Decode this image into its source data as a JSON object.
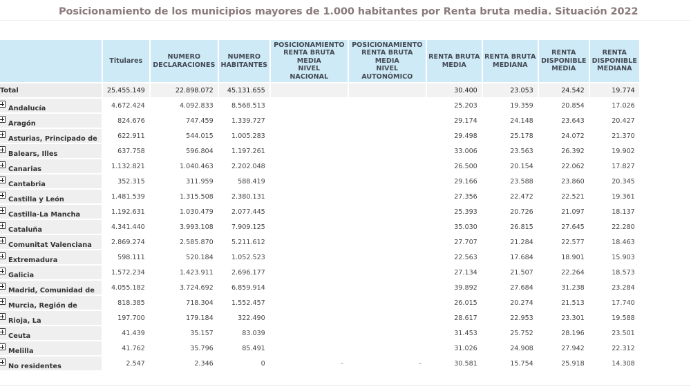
{
  "title": "Posicionamiento de los municipios mayores de 1.000 habitantes por Renta bruta media. Situación 2022",
  "colors": {
    "header_bg": "#cdeaf6",
    "label_bg": "#efefef",
    "title": "#8a7a7c"
  },
  "table": {
    "headers": [
      "",
      "Titulares",
      "NUMERO DECLARACIONES",
      "NUMERO HABITANTES",
      "POSICIONAMIENTO RENTA BRUTA MEDIA NIVEL NACIONAL",
      "POSICIONAMIENTO RENTA BRUTA MEDIA NIVEL AUTONÓMICO",
      "RENTA BRUTA MEDIA",
      "RENTA BRUTA MEDIANA",
      "RENTA DISPONIBLE MEDIA",
      "RENTA DISPONIBLE MEDIANA"
    ],
    "header_lines": {
      "titulares": [
        "Titulares"
      ],
      "declaraciones": [
        "NUMERO",
        "DECLARACIONES"
      ],
      "habitantes": [
        "NUMERO",
        "HABITANTES"
      ],
      "pos_nacional": [
        "POSICIONAMIENTO",
        "RENTA BRUTA",
        "MEDIA",
        "NIVEL",
        "NACIONAL"
      ],
      "pos_autonomico": [
        "POSICIONAMIENTO",
        "RENTA BRUTA",
        "MEDIA",
        "NIVEL",
        "AUTONÓMICO"
      ],
      "rb_media": [
        "RENTA BRUTA",
        "MEDIA"
      ],
      "rb_mediana": [
        "RENTA BRUTA",
        "MEDIANA"
      ],
      "rd_media": [
        "RENTA",
        "DISPONIBLE",
        "MEDIA"
      ],
      "rd_mediana": [
        "RENTA",
        "DISPONIBLE",
        "MEDIANA"
      ]
    },
    "total": {
      "label": "Total",
      "titulares": "25.455.149",
      "declaraciones": "22.898.072",
      "habitantes": "45.131.655",
      "pos_nacional": "",
      "pos_autonomico": "",
      "rb_media": "30.400",
      "rb_mediana": "23.053",
      "rd_media": "24.542",
      "rd_mediana": "19.774"
    },
    "rows": [
      {
        "label": "Andalucía",
        "titulares": "4.672.424",
        "declaraciones": "4.092.833",
        "habitantes": "8.568.513",
        "pos_nacional": "",
        "pos_autonomico": "",
        "rb_media": "25.203",
        "rb_mediana": "19.359",
        "rd_media": "20.854",
        "rd_mediana": "17.026"
      },
      {
        "label": "Aragón",
        "titulares": "824.676",
        "declaraciones": "747.459",
        "habitantes": "1.339.727",
        "pos_nacional": "",
        "pos_autonomico": "",
        "rb_media": "29.174",
        "rb_mediana": "24.148",
        "rd_media": "23.643",
        "rd_mediana": "20.427"
      },
      {
        "label": "Asturias, Principado de",
        "titulares": "622.911",
        "declaraciones": "544.015",
        "habitantes": "1.005.283",
        "pos_nacional": "",
        "pos_autonomico": "",
        "rb_media": "29.498",
        "rb_mediana": "25.178",
        "rd_media": "24.072",
        "rd_mediana": "21.370"
      },
      {
        "label": "Balears, Illes",
        "titulares": "637.758",
        "declaraciones": "596.804",
        "habitantes": "1.197.261",
        "pos_nacional": "",
        "pos_autonomico": "",
        "rb_media": "33.006",
        "rb_mediana": "23.563",
        "rd_media": "26.392",
        "rd_mediana": "19.902"
      },
      {
        "label": "Canarias",
        "titulares": "1.132.821",
        "declaraciones": "1.040.463",
        "habitantes": "2.202.048",
        "pos_nacional": "",
        "pos_autonomico": "",
        "rb_media": "26.500",
        "rb_mediana": "20.154",
        "rd_media": "22.062",
        "rd_mediana": "17.827"
      },
      {
        "label": "Cantabria",
        "titulares": "352.315",
        "declaraciones": "311.959",
        "habitantes": "588.419",
        "pos_nacional": "",
        "pos_autonomico": "",
        "rb_media": "29.166",
        "rb_mediana": "23.588",
        "rd_media": "23.860",
        "rd_mediana": "20.345"
      },
      {
        "label": "Castilla y León",
        "titulares": "1.481.539",
        "declaraciones": "1.315.508",
        "habitantes": "2.380.131",
        "pos_nacional": "",
        "pos_autonomico": "",
        "rb_media": "27.356",
        "rb_mediana": "22.472",
        "rd_media": "22.521",
        "rd_mediana": "19.361"
      },
      {
        "label": "Castilla-La Mancha",
        "titulares": "1.192.631",
        "declaraciones": "1.030.479",
        "habitantes": "2.077.445",
        "pos_nacional": "",
        "pos_autonomico": "",
        "rb_media": "25.393",
        "rb_mediana": "20.726",
        "rd_media": "21.097",
        "rd_mediana": "18.137"
      },
      {
        "label": "Cataluña",
        "titulares": "4.341.440",
        "declaraciones": "3.993.108",
        "habitantes": "7.909.125",
        "pos_nacional": "",
        "pos_autonomico": "",
        "rb_media": "35.030",
        "rb_mediana": "26.815",
        "rd_media": "27.645",
        "rd_mediana": "22.280"
      },
      {
        "label": "Comunitat Valenciana",
        "titulares": "2.869.274",
        "declaraciones": "2.585.870",
        "habitantes": "5.211.612",
        "pos_nacional": "",
        "pos_autonomico": "",
        "rb_media": "27.707",
        "rb_mediana": "21.284",
        "rd_media": "22.577",
        "rd_mediana": "18.463"
      },
      {
        "label": "Extremadura",
        "titulares": "598.111",
        "declaraciones": "520.184",
        "habitantes": "1.052.523",
        "pos_nacional": "",
        "pos_autonomico": "",
        "rb_media": "22.563",
        "rb_mediana": "17.684",
        "rd_media": "18.901",
        "rd_mediana": "15.903"
      },
      {
        "label": "Galicia",
        "titulares": "1.572.234",
        "declaraciones": "1.423.911",
        "habitantes": "2.696.177",
        "pos_nacional": "",
        "pos_autonomico": "",
        "rb_media": "27.134",
        "rb_mediana": "21.507",
        "rd_media": "22.264",
        "rd_mediana": "18.573"
      },
      {
        "label": "Madrid, Comunidad de",
        "titulares": "4.055.182",
        "declaraciones": "3.724.692",
        "habitantes": "6.859.914",
        "pos_nacional": "",
        "pos_autonomico": "",
        "rb_media": "39.892",
        "rb_mediana": "27.684",
        "rd_media": "31.238",
        "rd_mediana": "23.284"
      },
      {
        "label": "Murcia, Región de",
        "titulares": "818.385",
        "declaraciones": "718.304",
        "habitantes": "1.552.457",
        "pos_nacional": "",
        "pos_autonomico": "",
        "rb_media": "26.015",
        "rb_mediana": "20.274",
        "rd_media": "21.513",
        "rd_mediana": "17.740"
      },
      {
        "label": "Rioja, La",
        "titulares": "197.700",
        "declaraciones": "179.184",
        "habitantes": "322.490",
        "pos_nacional": "",
        "pos_autonomico": "",
        "rb_media": "28.617",
        "rb_mediana": "22.953",
        "rd_media": "23.301",
        "rd_mediana": "19.588"
      },
      {
        "label": "Ceuta",
        "titulares": "41.439",
        "declaraciones": "35.157",
        "habitantes": "83.039",
        "pos_nacional": "",
        "pos_autonomico": "",
        "rb_media": "31.453",
        "rb_mediana": "25.752",
        "rd_media": "28.196",
        "rd_mediana": "23.501"
      },
      {
        "label": "Melilla",
        "titulares": "41.762",
        "declaraciones": "35.796",
        "habitantes": "85.491",
        "pos_nacional": "",
        "pos_autonomico": "",
        "rb_media": "31.026",
        "rb_mediana": "24.908",
        "rd_media": "27.942",
        "rd_mediana": "22.312"
      },
      {
        "label": "No residentes",
        "titulares": "2.547",
        "declaraciones": "2.346",
        "habitantes": "0",
        "pos_nacional": "-",
        "pos_autonomico": "-",
        "rb_media": "30.581",
        "rb_mediana": "15.754",
        "rd_media": "25.918",
        "rd_mediana": "14.308"
      }
    ]
  },
  "icons": {
    "expand": "plus-square-icon"
  }
}
